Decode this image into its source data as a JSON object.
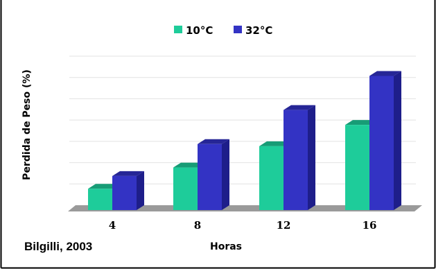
{
  "colors": {
    "series_10": "#1ecc9a",
    "series_10_top": "#179c76",
    "series_10_side": "#12a67c",
    "series_32": "#3333c4",
    "series_32_top": "#262696",
    "series_32_side": "#1e1e8a",
    "floor": "#9a9a9a",
    "border": "#000000"
  },
  "chart_data": {
    "type": "bar",
    "categories": [
      "4",
      "8",
      "12",
      "16"
    ],
    "series": [
      {
        "name": "10°C",
        "values": [
          1,
          2,
          3,
          4
        ]
      },
      {
        "name": "32°C",
        "values": [
          1.6,
          3.1,
          4.7,
          6.3
        ]
      }
    ],
    "title": "",
    "xlabel": "Horas",
    "ylabel": "Perdida de Peso (%)",
    "ylim": [
      0,
      7
    ],
    "grid": true,
    "legend_position": "top-center"
  },
  "source_note": "Bilgilli, 2003"
}
